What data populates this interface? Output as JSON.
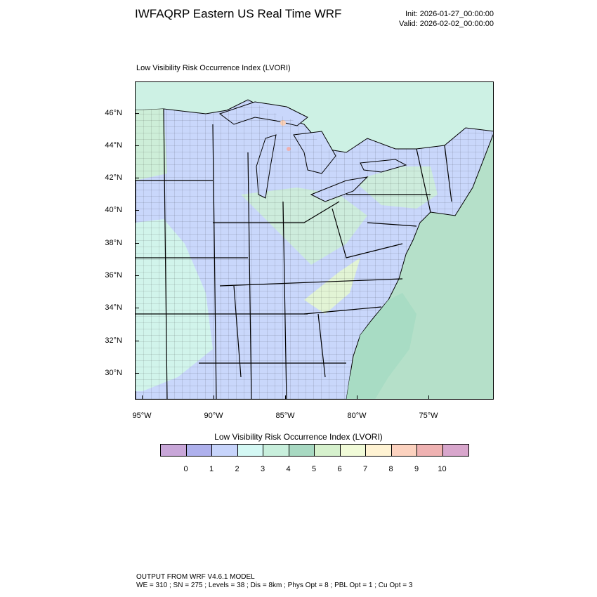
{
  "header": {
    "title": "IWFAQRP Eastern US Real Time WRF",
    "init": "Init: 2026-01-27_00:00:00",
    "valid": "Valid: 2026-02-02_00:00:00"
  },
  "map": {
    "field_title": "Low Visibility Risk Occurrence Index   (LVORI)",
    "lat_labels": [
      "46°N",
      "44°N",
      "42°N",
      "40°N",
      "38°N",
      "36°N",
      "34°N",
      "32°N",
      "30°N"
    ],
    "lon_labels": [
      "95°W",
      "90°W",
      "85°W",
      "80°W",
      "75°W"
    ],
    "colors": {
      "land_low": "#c9d7fb",
      "land_mid": "#d2f5ea",
      "land_high": "#a8dcc4",
      "ocean": "#b5e0c9",
      "lake": "#c9d7fb",
      "warm": "#f8cfb8",
      "county_lines": "#000000"
    }
  },
  "legend": {
    "title": "Low Visibility Risk Occurrence Index  (LVORI)",
    "labels": [
      "0",
      "1",
      "2",
      "3",
      "4",
      "5",
      "6",
      "7",
      "8",
      "9",
      "10"
    ],
    "colors": [
      "#c8a6d8",
      "#aeb0ec",
      "#c7d4fb",
      "#d4f8f4",
      "#c8efdc",
      "#a8d9c2",
      "#d6f1cd",
      "#f1fbd8",
      "#fff3d3",
      "#fcd2bf",
      "#efb2b2",
      "#d8a6cc"
    ]
  },
  "footer": {
    "line1": "OUTPUT FROM WRF V4.6.1 MODEL",
    "line2": "WE = 310 ; SN = 275 ; Levels = 38 ; Dis = 8km ; Phys Opt = 8 ; PBL Opt = 1 ; Cu Opt = 3"
  }
}
